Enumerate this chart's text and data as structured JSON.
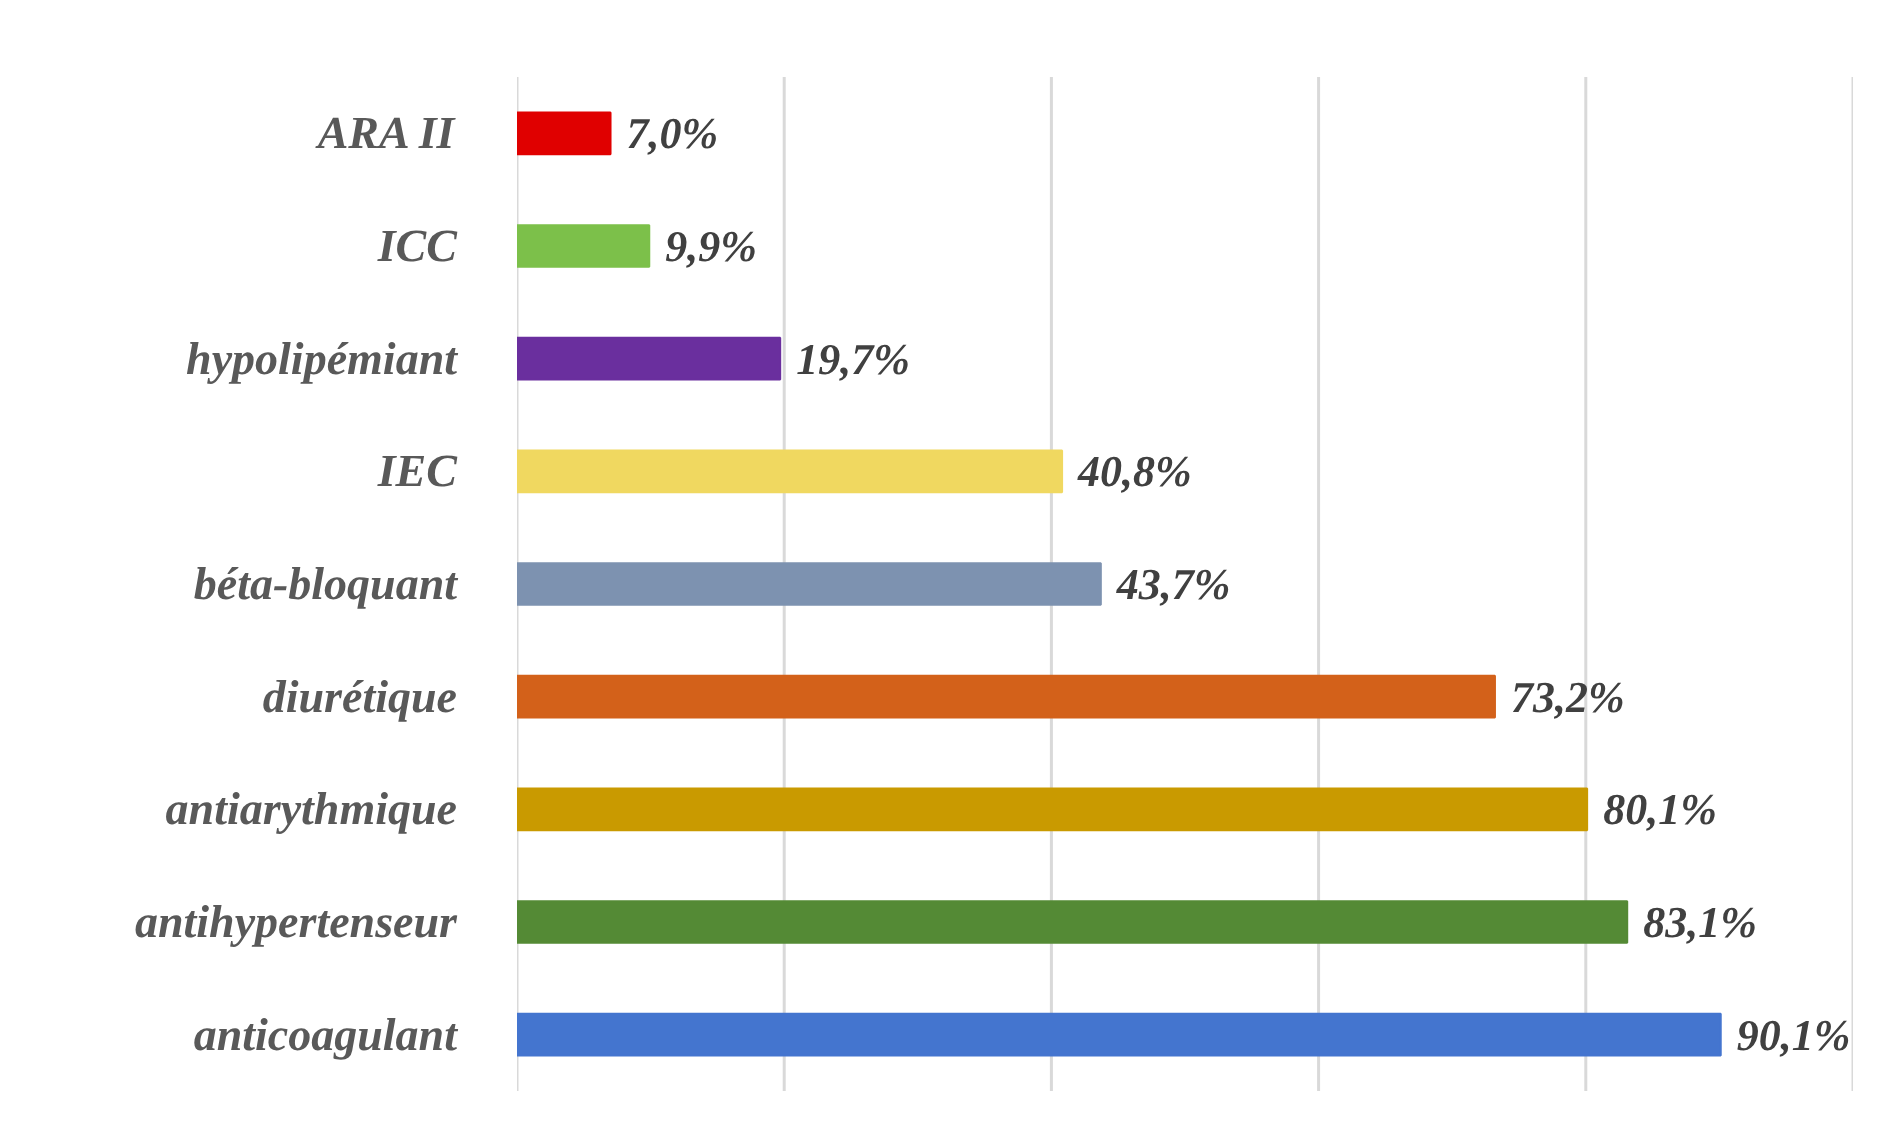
{
  "chart_data": {
    "type": "bar",
    "orientation": "horizontal",
    "categories": [
      "ARA II",
      "ICC",
      "hypolipémiant",
      "IEC",
      "béta-bloquant",
      "diurétique",
      "antiarythmique",
      "antihypertenseur",
      "anticoagulant"
    ],
    "values": [
      7.0,
      9.9,
      19.7,
      40.8,
      43.7,
      73.2,
      80.1,
      83.1,
      90.1
    ],
    "colors": [
      "#e00000",
      "#7cc04a",
      "#6a2f9e",
      "#f0d860",
      "#7d92b0",
      "#d3611a",
      "#c99a00",
      "#548a35",
      "#4475cf"
    ],
    "value_labels": [
      "7,0%",
      "9,9%",
      "19,7%",
      "40,8%",
      "43,7%",
      "73,2%",
      "80,1%",
      "83,1%",
      "90,1%"
    ],
    "xlim": [
      0,
      100
    ],
    "xticks": [
      {
        "value": 0,
        "label": null
      },
      {
        "value": 20,
        "label": null
      },
      {
        "value": 40,
        "label": null
      },
      {
        "value": 60,
        "label": null
      },
      {
        "value": 80,
        "label": null
      },
      {
        "value": 100,
        "label": null
      }
    ],
    "grid": "x",
    "tick_labels": "y"
  }
}
